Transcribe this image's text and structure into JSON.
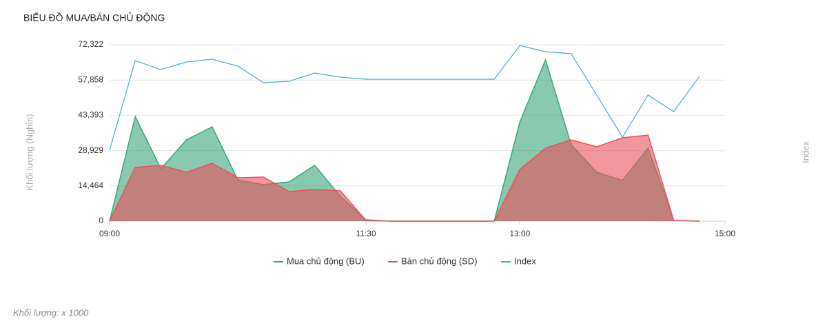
{
  "chart_data": {
    "type": "area",
    "title": "BIỂU ĐỒ MUA/BÁN CHỦ ĐỘNG",
    "y_label": "Khối lượng (Nghìn)",
    "y2_label": "Index",
    "footnote": "Khối lượng: x 1000",
    "x": [
      "09:00",
      "09:15",
      "09:30",
      "09:45",
      "10:00",
      "10:15",
      "10:30",
      "10:45",
      "11:00",
      "11:15",
      "11:30",
      "11:45",
      "12:00",
      "12:15",
      "12:30",
      "12:45",
      "13:00",
      "13:15",
      "13:30",
      "13:45",
      "14:00",
      "14:15",
      "14:30",
      "14:45"
    ],
    "xlim": [
      "09:00",
      "15:00"
    ],
    "xticks": [
      "09:00",
      "11:30",
      "13:00",
      "15:00"
    ],
    "ylim": [
      0,
      72322
    ],
    "yticks": [
      0,
      {
        "value": 14464,
        "label": "14,464"
      },
      {
        "value": 28929,
        "label": "28,929"
      },
      {
        "value": 43393,
        "label": "43,393"
      },
      {
        "value": 57858,
        "label": "57,858"
      },
      {
        "value": 72322,
        "label": "72,322"
      }
    ],
    "y2lim": [
      1240,
      1280
    ],
    "grid": true,
    "legend": "bottom",
    "series": [
      {
        "name": "Mua chủ động (BU)",
        "color": "#3aa57a",
        "values": [
          0,
          42940,
          21470,
          33335,
          38700,
          16950,
          14970,
          16100,
          22880,
          10170,
          565,
          0,
          0,
          0,
          0,
          0,
          40680,
          66100,
          31360,
          20060,
          16670,
          29940,
          280,
          0
        ]
      },
      {
        "name": "Bán chủ động (SD)",
        "color": "#e8505b",
        "values": [
          0,
          22040,
          22880,
          20060,
          23730,
          17800,
          18080,
          12150,
          13000,
          12430,
          280,
          0,
          0,
          0,
          0,
          0,
          21190,
          29950,
          33340,
          30510,
          34180,
          35310,
          280,
          0
        ]
      },
      {
        "name": "Index",
        "color": "#4aa8d8",
        "axis": "y2",
        "type": "line",
        "values": [
          1256.09,
          1276.41,
          1274.38,
          1276.09,
          1276.72,
          1275.16,
          1271.41,
          1271.72,
          1273.59,
          1272.66,
          1272.19,
          1272.19,
          1272.19,
          1272.19,
          1272.19,
          1272.19,
          1279.84,
          1278.44,
          1277.97,
          1268.59,
          1259.06,
          1268.59,
          1264.84,
          1272.81
        ]
      }
    ]
  }
}
